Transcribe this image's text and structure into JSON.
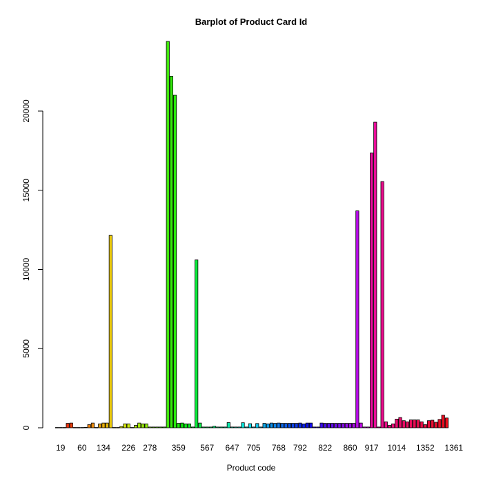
{
  "chart_data": {
    "type": "bar",
    "title": "Barplot of Product Card Id",
    "xlabel": "Product code",
    "ylabel": "",
    "ylim": [
      0,
      25000
    ],
    "yticks": [
      0,
      5000,
      10000,
      15000,
      20000
    ],
    "xtick_labels": [
      "19",
      "60",
      "134",
      "226",
      "278",
      "359",
      "567",
      "647",
      "705",
      "768",
      "792",
      "822",
      "860",
      "917",
      "1014",
      "1352",
      "1361"
    ],
    "xtick_bar_index": [
      1,
      7,
      13,
      20,
      26,
      34,
      42,
      49,
      55,
      62,
      68,
      75,
      82,
      88,
      95,
      103,
      111
    ],
    "values": [
      20,
      20,
      20,
      280,
      300,
      20,
      20,
      20,
      30,
      200,
      300,
      20,
      250,
      300,
      300,
      12150,
      20,
      20,
      80,
      250,
      250,
      20,
      150,
      300,
      250,
      250,
      50,
      50,
      50,
      50,
      50,
      24400,
      22200,
      21000,
      280,
      300,
      250,
      250,
      50,
      10600,
      300,
      50,
      50,
      50,
      100,
      50,
      50,
      50,
      330,
      50,
      50,
      50,
      320,
      50,
      260,
      50,
      270,
      50,
      280,
      250,
      300,
      280,
      300,
      280,
      280,
      280,
      280,
      280,
      300,
      250,
      300,
      300,
      50,
      50,
      300,
      280,
      280,
      280,
      280,
      280,
      280,
      280,
      280,
      280,
      13700,
      300,
      50,
      50,
      17350,
      19300,
      50,
      15550,
      380,
      150,
      250,
      550,
      650,
      450,
      380,
      500,
      500,
      500,
      380,
      200,
      450,
      480,
      350,
      530,
      800,
      620
    ]
  }
}
